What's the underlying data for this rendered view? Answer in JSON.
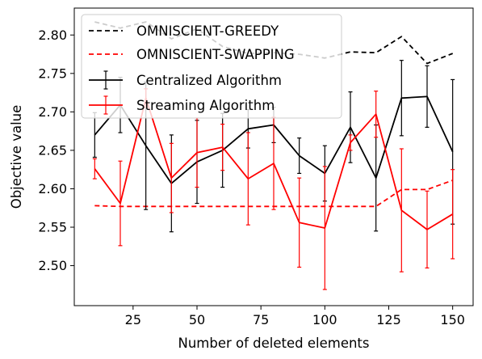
{
  "chart_data": {
    "type": "line",
    "xlabel": "Number of deleted elements",
    "ylabel": "Objective value",
    "xlim": [
      2,
      158
    ],
    "ylim": [
      2.448,
      2.835
    ],
    "xticks": [
      25,
      50,
      75,
      100,
      125,
      150
    ],
    "yticks": [
      2.5,
      2.55,
      2.6,
      2.65,
      2.7,
      2.75,
      2.8
    ],
    "legend_position": "top-left",
    "series": [
      {
        "name": "OMNISCIENT-GREEDY",
        "color": "#000000",
        "dash": "dashed",
        "x": [
          10,
          20,
          30,
          40,
          50,
          60,
          70,
          80,
          90,
          100,
          110,
          120,
          130,
          140,
          150
        ],
        "y": [
          2.817,
          2.809,
          2.817,
          2.795,
          2.808,
          2.785,
          2.776,
          2.777,
          2.775,
          2.77,
          2.778,
          2.777,
          2.798,
          2.763,
          2.776
        ]
      },
      {
        "name": "OMNISCIENT-SWAPPING",
        "color": "#ff0000",
        "dash": "dashed",
        "x": [
          10,
          20,
          30,
          40,
          50,
          60,
          70,
          80,
          90,
          100,
          110,
          120,
          130,
          140,
          150
        ],
        "y": [
          2.578,
          2.577,
          2.577,
          2.577,
          2.577,
          2.577,
          2.577,
          2.577,
          2.577,
          2.577,
          2.577,
          2.577,
          2.599,
          2.599,
          2.611
        ]
      },
      {
        "name": "Centralized Algorithm",
        "color": "#000000",
        "dash": "solid",
        "x": [
          10,
          20,
          30,
          40,
          50,
          60,
          70,
          80,
          90,
          100,
          110,
          120,
          130,
          140,
          150
        ],
        "y": [
          2.67,
          2.709,
          2.656,
          2.607,
          2.635,
          2.65,
          2.678,
          2.683,
          2.643,
          2.62,
          2.68,
          2.614,
          2.718,
          2.72,
          2.648
        ],
        "err": [
          0.029,
          0.036,
          0.083,
          0.063,
          0.054,
          0.048,
          0.025,
          0.023,
          0.023,
          0.036,
          0.046,
          0.069,
          0.049,
          0.04,
          0.094
        ]
      },
      {
        "name": "Streaming Algorithm",
        "color": "#ff0000",
        "dash": "solid",
        "x": [
          10,
          20,
          30,
          40,
          50,
          60,
          70,
          80,
          90,
          100,
          110,
          120,
          130,
          140,
          150
        ],
        "y": [
          2.626,
          2.581,
          2.718,
          2.614,
          2.647,
          2.654,
          2.613,
          2.633,
          2.556,
          2.549,
          2.66,
          2.697,
          2.572,
          2.547,
          2.567
        ],
        "err": [
          0.013,
          0.055,
          0.012,
          0.045,
          0.045,
          0.03,
          0.06,
          0.06,
          0.058,
          0.08,
          0.01,
          0.03,
          0.08,
          0.05,
          0.058
        ]
      }
    ]
  }
}
